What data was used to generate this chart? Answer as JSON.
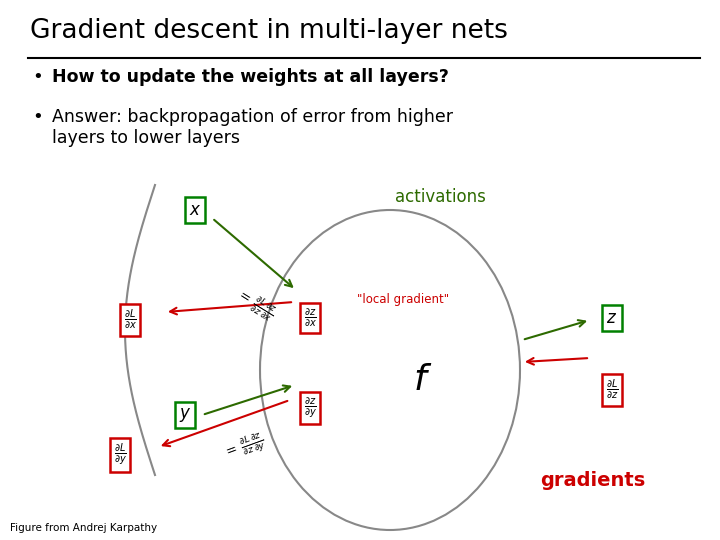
{
  "title": "Gradient descent in multi-layer nets",
  "bullet1": "How to update the weights at all layers?",
  "bullet2": "Answer: backpropagation of error from higher\nlayers to lower layers",
  "activations_label": "activations",
  "activations_color": "#2d6a00",
  "gradients_label": "gradients",
  "gradients_color": "#cc0000",
  "local_gradient_label": "\"local gradient\"",
  "f_label": "f",
  "footnote": "Figure from Andrej Karpathy",
  "bg_color": "#ffffff"
}
